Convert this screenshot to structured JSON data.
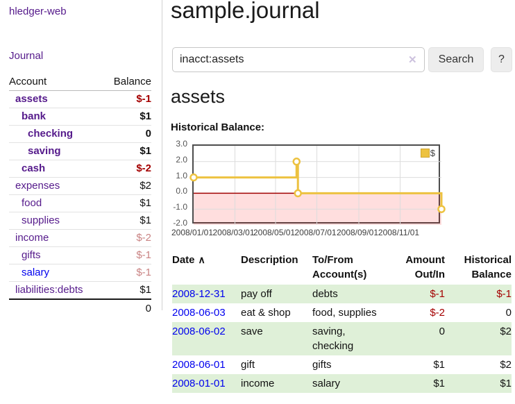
{
  "app": {
    "title": "hledger-web",
    "nav_journal": "Journal"
  },
  "sidebar": {
    "accounts_header": {
      "account": "Account",
      "balance": "Balance"
    },
    "accounts": [
      {
        "name": "assets",
        "balance": "$-1",
        "indent": "depth-1",
        "name_class": "bold",
        "balance_class": "bold neg-strong"
      },
      {
        "name": "bank",
        "balance": "$1",
        "indent": "depth-2",
        "name_class": "bold",
        "balance_class": "bold"
      },
      {
        "name": "checking",
        "balance": "0",
        "indent": "depth-3",
        "name_class": "bold",
        "balance_class": "bold"
      },
      {
        "name": "saving",
        "balance": "$1",
        "indent": "depth-3",
        "name_class": "bold",
        "balance_class": "bold"
      },
      {
        "name": "cash",
        "balance": "$-2",
        "indent": "depth-2",
        "name_class": "bold",
        "balance_class": "bold neg-strong"
      },
      {
        "name": "expenses",
        "balance": "$2",
        "indent": "depth-1",
        "name_class": "",
        "balance_class": ""
      },
      {
        "name": "food",
        "balance": "$1",
        "indent": "depth-2",
        "name_class": "",
        "balance_class": ""
      },
      {
        "name": "supplies",
        "balance": "$1",
        "indent": "depth-2",
        "name_class": "",
        "balance_class": ""
      },
      {
        "name": "income",
        "balance": "$-2",
        "indent": "depth-1",
        "name_class": "",
        "balance_class": "neg-soft"
      },
      {
        "name": "gifts",
        "balance": "$-1",
        "indent": "depth-2",
        "name_class": "",
        "balance_class": "neg-soft"
      },
      {
        "name": "salary",
        "balance": "$-1",
        "indent": "depth-2",
        "name_class": "blue",
        "balance_class": "neg-soft"
      },
      {
        "name": "liabilities:debts",
        "balance": "$1",
        "indent": "depth-1",
        "name_class": "",
        "balance_class": ""
      }
    ],
    "total": "0"
  },
  "main": {
    "journal_title": "sample.journal",
    "search": {
      "value": "inacct:assets",
      "clear_icon": "✕",
      "button_label": "Search",
      "help_label": "?"
    },
    "account_heading": "assets",
    "chart_label": "Historical Balance:"
  },
  "chart_data": {
    "type": "line",
    "title": "Historical Balance",
    "step": true,
    "ylim": [
      -2,
      3
    ],
    "y_ticks": [
      "3.0",
      "2.0",
      "1.0",
      "0.0",
      "-1.0",
      "-2.0"
    ],
    "y_tick_values": [
      3,
      2,
      1,
      0,
      -1,
      -2
    ],
    "x_ticks": [
      {
        "label": "2008/01/01",
        "f": 0
      },
      {
        "label": "2008/03/01",
        "f": 0.1667
      },
      {
        "label": "2008/05/01",
        "f": 0.3306
      },
      {
        "label": "2008/07/01",
        "f": 0.4973
      },
      {
        "label": "2008/09/01",
        "f": 0.6667
      },
      {
        "label": "2008/11/01",
        "f": 0.8333
      }
    ],
    "series": [
      {
        "name": "$",
        "color": "#edc240",
        "marker_fill": "#ffffff",
        "points": [
          {
            "date": "2008-01-01",
            "f": 0,
            "y": 1
          },
          {
            "date": "2008-06-01",
            "f": 0.4153,
            "y": 2
          },
          {
            "date": "2008-06-03",
            "f": 0.4208,
            "y": 0
          },
          {
            "date": "2008-12-31",
            "f": 1,
            "y": -1
          }
        ]
      }
    ],
    "grid": {
      "on": true,
      "line_color": "#dcdcdc"
    },
    "negative_region": {
      "below": 0,
      "color": "rgba(255,0,0,0.13)",
      "zero_line_color": "#a00000"
    },
    "legend_position": "top-right"
  },
  "transactions": {
    "columns": [
      "Date",
      "Description",
      "To/From Account(s)",
      "Amount Out/In",
      "Historical Balance"
    ],
    "sort_icon": "∧",
    "rows": [
      {
        "date": "2008-12-31",
        "description": "pay off",
        "accounts": "debts",
        "amount": "$-1",
        "amount_class": "neg",
        "balance": "$-1",
        "balance_class": "neg"
      },
      {
        "date": "2008-06-03",
        "description": "eat & shop",
        "accounts": "food, supplies",
        "amount": "$-2",
        "amount_class": "neg",
        "balance": "0",
        "balance_class": ""
      },
      {
        "date": "2008-06-02",
        "description": "save",
        "accounts": "saving, checking",
        "amount": "0",
        "amount_class": "",
        "balance": "$2",
        "balance_class": ""
      },
      {
        "date": "2008-06-01",
        "description": "gift",
        "accounts": "gifts",
        "amount": "$1",
        "amount_class": "",
        "balance": "$2",
        "balance_class": ""
      },
      {
        "date": "2008-01-01",
        "description": "income",
        "accounts": "salary",
        "amount": "$1",
        "amount_class": "",
        "balance": "$1",
        "balance_class": ""
      }
    ]
  },
  "colors": {
    "accent_purple": "#551a8b",
    "link_blue": "#0000ee",
    "negative_strong": "#a40000",
    "negative_soft": "#c98383",
    "row_stripe_green": "#dff0d8",
    "chart_gold": "#edc240",
    "negative_area_pink": "#fbdbdb"
  }
}
